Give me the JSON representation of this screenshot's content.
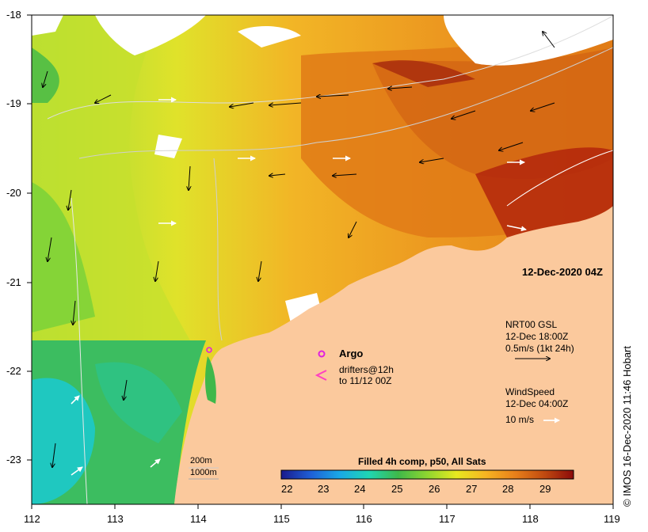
{
  "map": {
    "date_stamp": "12-Dec-2020 04Z",
    "copyright": "© IMOS 16-Dec-2020 11:46 Hobart",
    "lat_ticks": [
      "-18",
      "-19",
      "-20",
      "-21",
      "-22",
      "-23"
    ],
    "lon_ticks": [
      "112",
      "113",
      "114",
      "115",
      "116",
      "117",
      "118",
      "119"
    ],
    "colorbar": {
      "title": "Filled 4h comp, p50, All Sats",
      "ticks": [
        "22",
        "23",
        "24",
        "25",
        "26",
        "27",
        "28",
        "29"
      ],
      "range": [
        21.7,
        29.7
      ],
      "colors": [
        "#1a1a8c",
        "#1f5fd6",
        "#1aa8e6",
        "#1fd6b3",
        "#3fb84a",
        "#8fd630",
        "#e8e820",
        "#f6b422",
        "#e8801a",
        "#c04a10",
        "#8c0a0a"
      ]
    },
    "legend": {
      "argo_label": "Argo",
      "drifter_label": "drifters@12h",
      "drifter_sub": "to 11/12 00Z",
      "gsl_title": "NRT00 GSL",
      "gsl_date": "12-Dec 18:00Z",
      "gsl_speed": "0.5m/s (1kt 24h)",
      "wind_title": "WindSpeed",
      "wind_date": "12-Dec 04:00Z",
      "wind_speed": "10 m/s"
    },
    "contours": {
      "c200": "200m",
      "c1000": "1000m"
    },
    "colors": {
      "land": "#fbc99d",
      "argo": "#e020e0",
      "drifter": "#ff40c0"
    }
  }
}
